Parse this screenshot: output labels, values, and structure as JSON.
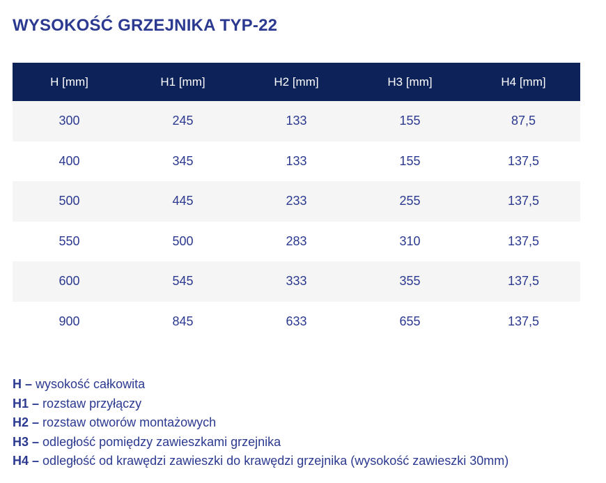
{
  "page": {
    "title": "WYSOKOŚĆ GRZEJNIKA TYP-22"
  },
  "table": {
    "columns": [
      "H [mm]",
      "H1 [mm]",
      "H2 [mm]",
      "H3 [mm]",
      "H4 [mm]"
    ],
    "rows": [
      [
        "300",
        "245",
        "133",
        "155",
        "87,5"
      ],
      [
        "400",
        "345",
        "133",
        "155",
        "137,5"
      ],
      [
        "500",
        "445",
        "233",
        "255",
        "137,5"
      ],
      [
        "550",
        "500",
        "283",
        "310",
        "137,5"
      ],
      [
        "600",
        "545",
        "333",
        "355",
        "137,5"
      ],
      [
        "900",
        "845",
        "633",
        "655",
        "137,5"
      ]
    ]
  },
  "legend": [
    {
      "term": "H –",
      "definition": "wysokość całkowita"
    },
    {
      "term": "H1 –",
      "definition": "rozstaw przyłączy"
    },
    {
      "term": "H2 –",
      "definition": "rozstaw otworów montażowych"
    },
    {
      "term": "H3 –",
      "definition": "odległość pomiędzy zawieszkami grzejnika"
    },
    {
      "term": "H4 –",
      "definition": "odległość od krawędzi zawieszki do krawędzi grzejnika (wysokość zawieszki 30mm)"
    }
  ],
  "colors": {
    "header_bg": "#0c2259",
    "header_text": "#ffffff",
    "accent_blue": "#2b3990",
    "row_alt_bg": "#f5f5f5",
    "row_bg": "#ffffff"
  }
}
